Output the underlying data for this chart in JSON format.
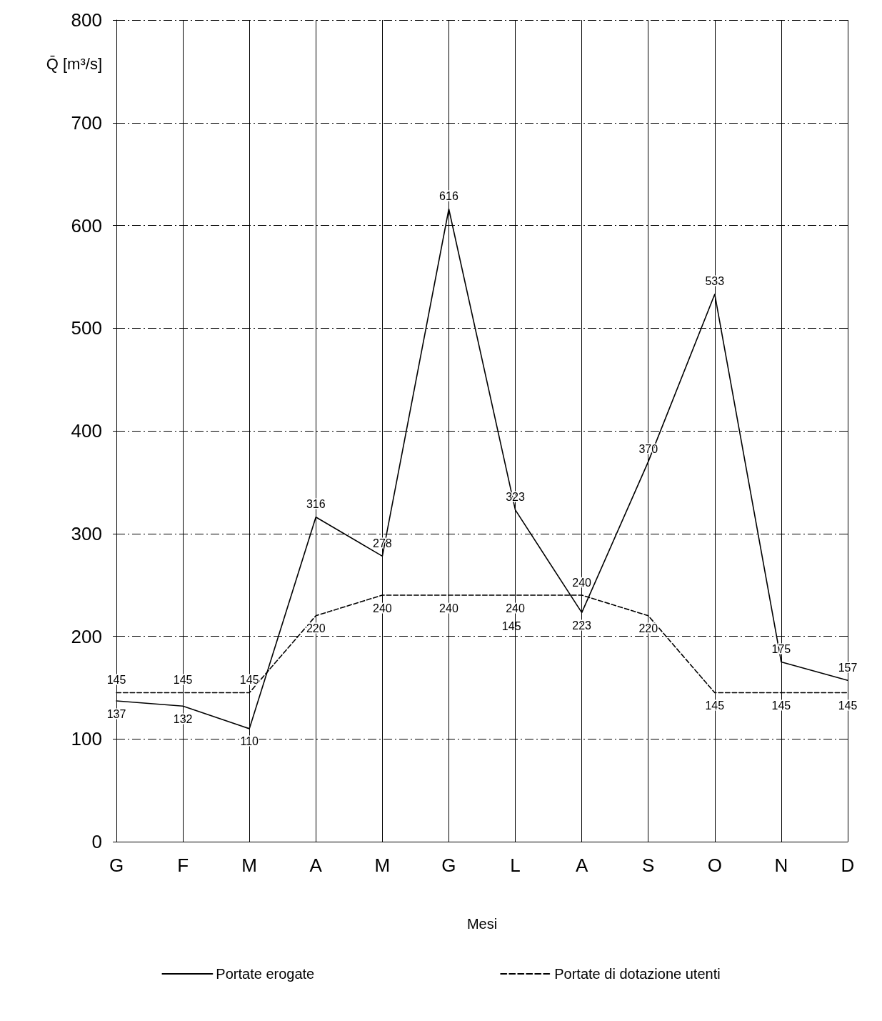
{
  "chart_data": {
    "type": "line",
    "xlabel": "Mesi",
    "ylabel": "Q̄ [m³/s]",
    "categories": [
      "G",
      "F",
      "M",
      "A",
      "M",
      "G",
      "L",
      "A",
      "S",
      "O",
      "N",
      "D"
    ],
    "series": [
      {
        "name": "Portate erogate",
        "color": "#000000",
        "line_style": "solid",
        "values": [
          137,
          132,
          110,
          316,
          278,
          616,
          323,
          223,
          370,
          533,
          175,
          157
        ]
      },
      {
        "name": "Portate di dotazione utenti",
        "color": "#000000",
        "line_style": "dashed",
        "values": [
          145,
          145,
          145,
          220,
          240,
          240,
          240,
          240,
          220,
          145,
          145,
          145
        ]
      }
    ],
    "ylim": [
      0,
      800
    ],
    "yticks": [
      0,
      100,
      200,
      300,
      400,
      500,
      600,
      700,
      800
    ],
    "grid": true,
    "legend": "bottom",
    "marker": "none",
    "data_labels": true,
    "annotations": [
      "145"
    ]
  }
}
